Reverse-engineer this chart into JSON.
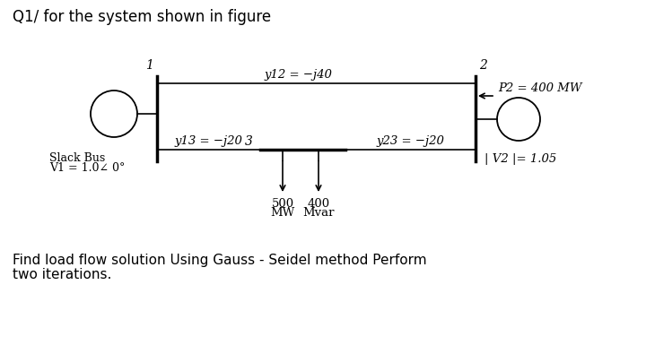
{
  "title": "Q1/ for the system shown in figure",
  "footer_line1": "Find load flow solution Using Gauss - Seidel method Perform",
  "footer_line2": "two iterations.",
  "background_color": "#ffffff",
  "text_color": "#000000",
  "bus1_label": "1",
  "bus2_label": "2",
  "bus3_label": "3",
  "y12_label": "y12 = −j40",
  "y13_label": "y13 = −j20",
  "y23_label": "y23 = −j20",
  "slack_label1": "Slack Bus",
  "slack_label2": "V1 = 1.0∠ 0°",
  "v2_label": "| V2 |= 1.05",
  "p2_label": "P2 = 400 MW",
  "load_mw_1": "500",
  "load_mw_2": "MW",
  "load_mvar_1": "400",
  "load_mvar_2": "Mvar",
  "line_color": "#000000",
  "font_size_title": 12,
  "font_size_label": 9.5,
  "font_size_footer": 11,
  "font_size_bus": 10,
  "font_size_slack": 9
}
